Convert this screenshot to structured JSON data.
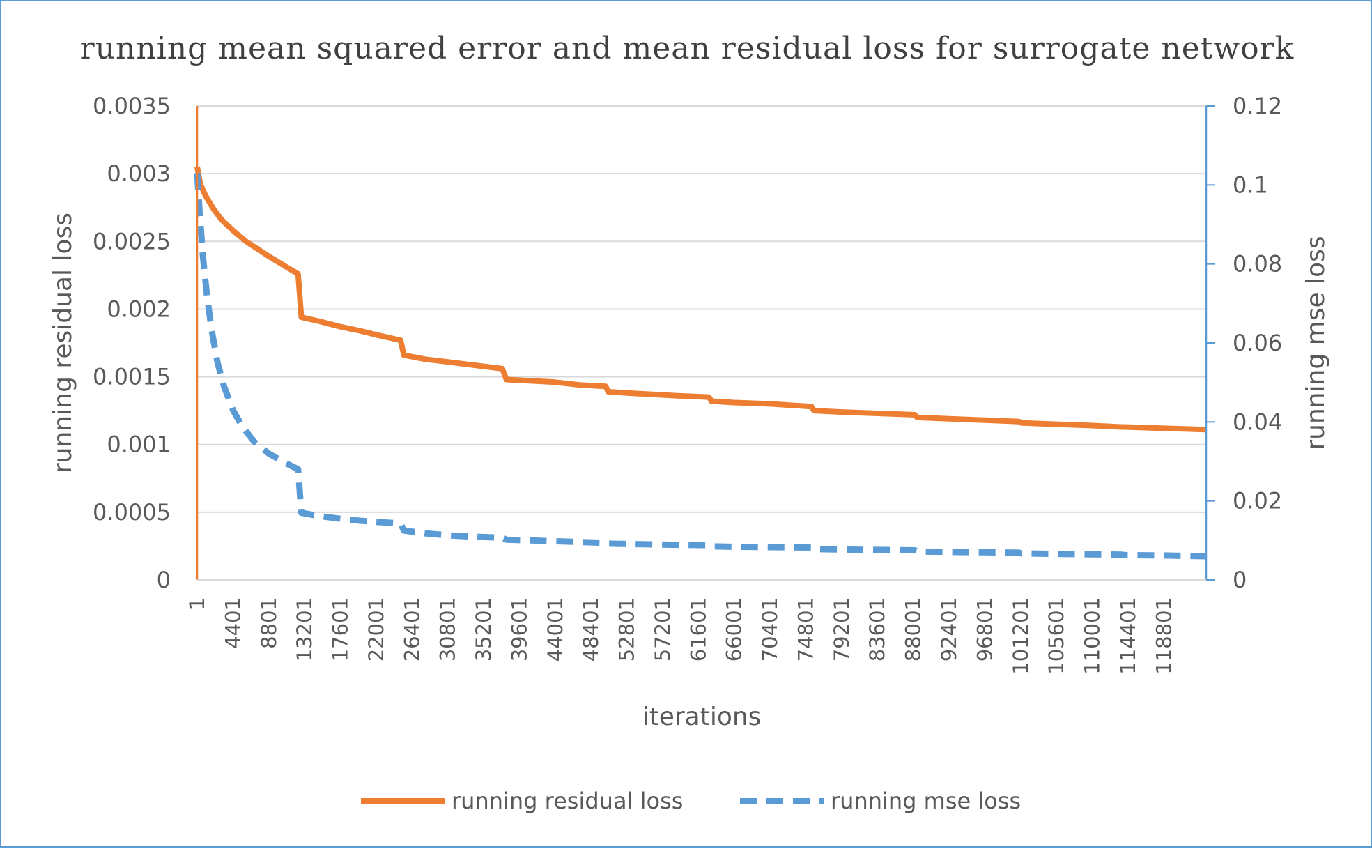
{
  "chart_data": {
    "type": "line",
    "title": "running  mean squared error and mean residual loss for  surrogate network",
    "xlabel": "iterations",
    "ylabel_left": "running residual loss",
    "ylabel_right": "running mse loss",
    "ylim_left": [
      0,
      0.0035
    ],
    "ylim_right": [
      0,
      0.12
    ],
    "y_ticks_left": [
      "0",
      "0.0005",
      "0.001",
      "0.0015",
      "0.002",
      "0.0025",
      "0.003",
      "0.0035"
    ],
    "y_ticks_right": [
      "0",
      "0.02",
      "0.04",
      "0.06",
      "0.08",
      "0.1",
      "0.12"
    ],
    "x_tick_labels": [
      "1",
      "4401",
      "8801",
      "13201",
      "17601",
      "22001",
      "26401",
      "30801",
      "35201",
      "39601",
      "44001",
      "48401",
      "52801",
      "57201",
      "61601",
      "66001",
      "70401",
      "74801",
      "79201",
      "83601",
      "88001",
      "92401",
      "96801",
      "101201",
      "105601",
      "110001",
      "114401",
      "118801"
    ],
    "xlim": [
      1,
      124000
    ],
    "grid": true,
    "legend_position": "bottom",
    "series": [
      {
        "name": "running residual loss",
        "axis": "left",
        "color": "#ed7d31",
        "style": "solid",
        "points": [
          [
            1,
            0.00305
          ],
          [
            400,
            0.00292
          ],
          [
            1000,
            0.00284
          ],
          [
            2000,
            0.00274
          ],
          [
            3000,
            0.00266
          ],
          [
            4401,
            0.00258
          ],
          [
            6000,
            0.0025
          ],
          [
            8801,
            0.00239
          ],
          [
            11000,
            0.00231
          ],
          [
            12400,
            0.00226
          ],
          [
            12800,
            0.00194
          ],
          [
            15000,
            0.00191
          ],
          [
            17601,
            0.00187
          ],
          [
            20000,
            0.00184
          ],
          [
            22001,
            0.00181
          ],
          [
            25000,
            0.00177
          ],
          [
            25400,
            0.00166
          ],
          [
            28000,
            0.00163
          ],
          [
            30801,
            0.00161
          ],
          [
            33500,
            0.00159
          ],
          [
            37500,
            0.00156
          ],
          [
            38000,
            0.00148
          ],
          [
            41000,
            0.00147
          ],
          [
            44001,
            0.00146
          ],
          [
            47000,
            0.00144
          ],
          [
            50200,
            0.00143
          ],
          [
            50500,
            0.00139
          ],
          [
            53000,
            0.00138
          ],
          [
            56000,
            0.00137
          ],
          [
            59000,
            0.00136
          ],
          [
            62900,
            0.00135
          ],
          [
            63200,
            0.00132
          ],
          [
            66001,
            0.00131
          ],
          [
            70401,
            0.0013
          ],
          [
            75500,
            0.00128
          ],
          [
            75800,
            0.00125
          ],
          [
            79201,
            0.00124
          ],
          [
            83601,
            0.00123
          ],
          [
            88200,
            0.00122
          ],
          [
            88500,
            0.0012
          ],
          [
            92401,
            0.00119
          ],
          [
            96801,
            0.00118
          ],
          [
            101000,
            0.00117
          ],
          [
            101300,
            0.00116
          ],
          [
            105601,
            0.00115
          ],
          [
            110001,
            0.00114
          ],
          [
            113600,
            0.00113
          ],
          [
            113900,
            0.00113
          ],
          [
            118801,
            0.00112
          ],
          [
            124000,
            0.00111
          ]
        ]
      },
      {
        "name": "running mse loss",
        "axis": "right",
        "color": "#5b9bd5",
        "style": "dashed",
        "points": [
          [
            1,
            0.103
          ],
          [
            300,
            0.093
          ],
          [
            700,
            0.082
          ],
          [
            1200,
            0.072
          ],
          [
            1800,
            0.063
          ],
          [
            2500,
            0.055
          ],
          [
            3300,
            0.049
          ],
          [
            4401,
            0.043
          ],
          [
            5500,
            0.039
          ],
          [
            7000,
            0.035
          ],
          [
            8801,
            0.032
          ],
          [
            10500,
            0.03
          ],
          [
            12400,
            0.028
          ],
          [
            12800,
            0.017
          ],
          [
            15000,
            0.0162
          ],
          [
            17601,
            0.0155
          ],
          [
            20000,
            0.015
          ],
          [
            22001,
            0.0147
          ],
          [
            25000,
            0.0143
          ],
          [
            25400,
            0.0125
          ],
          [
            28000,
            0.0118
          ],
          [
            30801,
            0.0113
          ],
          [
            33500,
            0.011
          ],
          [
            37500,
            0.0107
          ],
          [
            38000,
            0.0102
          ],
          [
            41000,
            0.01
          ],
          [
            44001,
            0.0098
          ],
          [
            47000,
            0.0096
          ],
          [
            50200,
            0.0094
          ],
          [
            50500,
            0.0092
          ],
          [
            53000,
            0.0091
          ],
          [
            56000,
            0.009
          ],
          [
            59000,
            0.0089
          ],
          [
            62900,
            0.0088
          ],
          [
            63200,
            0.0085
          ],
          [
            66001,
            0.0084
          ],
          [
            70401,
            0.0083
          ],
          [
            75500,
            0.0082
          ],
          [
            75800,
            0.0078
          ],
          [
            79201,
            0.0077
          ],
          [
            83601,
            0.0076
          ],
          [
            88200,
            0.0075
          ],
          [
            88500,
            0.0072
          ],
          [
            92401,
            0.0071
          ],
          [
            96801,
            0.007
          ],
          [
            101000,
            0.0069
          ],
          [
            101300,
            0.0067
          ],
          [
            105601,
            0.0066
          ],
          [
            110001,
            0.0065
          ],
          [
            113600,
            0.0064
          ],
          [
            113900,
            0.0063
          ],
          [
            118801,
            0.0062
          ],
          [
            124000,
            0.006
          ]
        ]
      }
    ]
  }
}
